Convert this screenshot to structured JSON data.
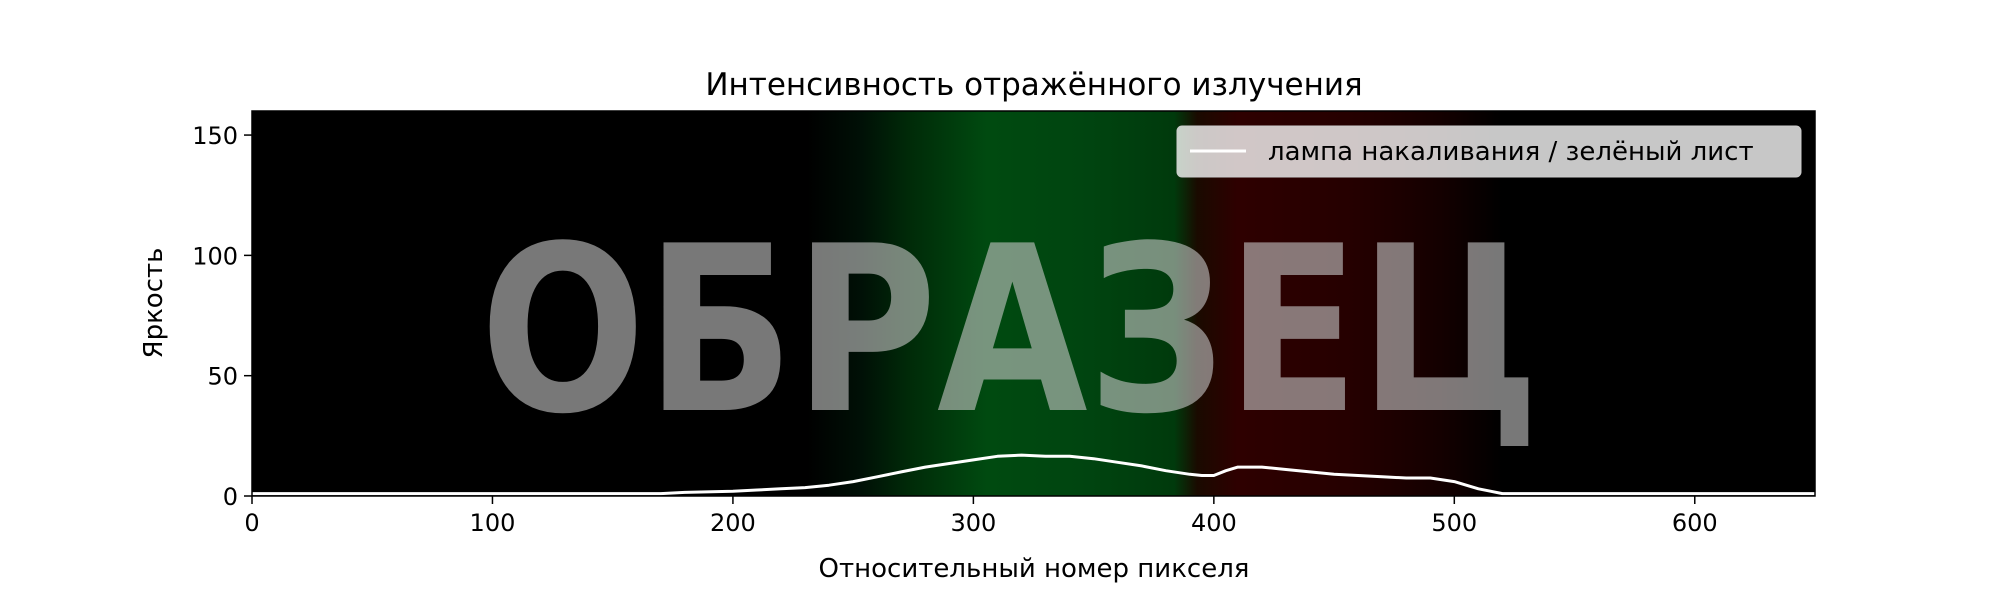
{
  "chart_data": {
    "type": "line",
    "title": "Интенсивность отражённого излучения",
    "xlabel": "Относительный номер пикселя",
    "ylabel": "Яркость",
    "xlim": [
      0,
      650
    ],
    "ylim": [
      0,
      160
    ],
    "xticks": [
      0,
      100,
      200,
      300,
      400,
      500,
      600
    ],
    "yticks": [
      0,
      50,
      100,
      150
    ],
    "grid": false,
    "legend_position": "top-right",
    "background": "black-with-green-and-red-spectrum-bands",
    "line_color": "#ffffff",
    "watermark": "ОБРАЗЕЦ",
    "series": [
      {
        "name": "лампа накаливания / зелёный лист",
        "x": [
          0,
          50,
          100,
          150,
          170,
          180,
          200,
          210,
          220,
          230,
          240,
          250,
          260,
          270,
          280,
          290,
          300,
          310,
          320,
          330,
          340,
          350,
          360,
          370,
          380,
          390,
          395,
          400,
          405,
          410,
          420,
          430,
          440,
          450,
          460,
          470,
          480,
          490,
          500,
          505,
          510,
          515,
          520,
          530,
          550,
          600,
          650
        ],
        "y": [
          1,
          1,
          1,
          1,
          1,
          1.5,
          2,
          2.5,
          3,
          3.5,
          4.5,
          6,
          8,
          10,
          12,
          13.5,
          15,
          16.5,
          17,
          16.5,
          16.5,
          15.5,
          14,
          12.5,
          10.5,
          9,
          8.5,
          8.5,
          10.5,
          12,
          12,
          11,
          10,
          9,
          8.5,
          8,
          7.5,
          7.5,
          6,
          4.5,
          3,
          2,
          1,
          1,
          1,
          1,
          1
        ]
      }
    ]
  }
}
